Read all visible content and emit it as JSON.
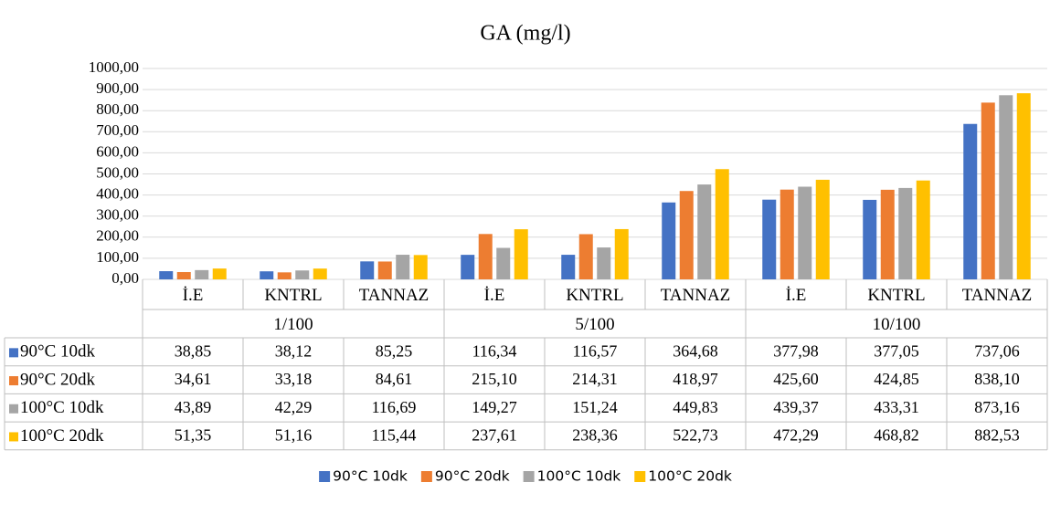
{
  "chart_data": {
    "type": "bar",
    "title": "GA (mg/l)",
    "categories": [
      "İ.E",
      "KNTRL",
      "TANNAZ",
      "İ.E",
      "KNTRL",
      "TANNAZ",
      "İ.E",
      "KNTRL",
      "TANNAZ"
    ],
    "category_groups": [
      "1/100",
      "5/100",
      "10/100"
    ],
    "series": [
      {
        "name": "90°C 10dk",
        "color": "#4472c4",
        "values": [
          38.85,
          38.12,
          85.25,
          116.34,
          116.57,
          364.68,
          377.98,
          377.05,
          737.06
        ],
        "value_labels": [
          "38,85",
          "38,12",
          "85,25",
          "116,34",
          "116,57",
          "364,68",
          "377,98",
          "377,05",
          "737,06"
        ]
      },
      {
        "name": "90°C 20dk",
        "color": "#ed7d31",
        "values": [
          34.61,
          33.18,
          84.61,
          215.1,
          214.31,
          418.97,
          425.6,
          424.85,
          838.1
        ],
        "value_labels": [
          "34,61",
          "33,18",
          "84,61",
          "215,10",
          "214,31",
          "418,97",
          "425,60",
          "424,85",
          "838,10"
        ]
      },
      {
        "name": "100°C 10dk",
        "color": "#a5a5a5",
        "values": [
          43.89,
          42.29,
          116.69,
          149.27,
          151.24,
          449.83,
          439.37,
          433.31,
          873.16
        ],
        "value_labels": [
          "43,89",
          "42,29",
          "116,69",
          "149,27",
          "151,24",
          "449,83",
          "439,37",
          "433,31",
          "873,16"
        ]
      },
      {
        "name": "100°C 20dk",
        "color": "#ffc000",
        "values": [
          51.35,
          51.16,
          115.44,
          237.61,
          238.36,
          522.73,
          472.29,
          468.82,
          882.53
        ],
        "value_labels": [
          "51,35",
          "51,16",
          "115,44",
          "237,61",
          "238,36",
          "522,73",
          "472,29",
          "468,82",
          "882,53"
        ]
      }
    ],
    "ylim": [
      0,
      1000
    ],
    "yticks": [
      {
        "value": 0,
        "label": "0,00"
      },
      {
        "value": 100,
        "label": "100,00"
      },
      {
        "value": 200,
        "label": "200,00"
      },
      {
        "value": 300,
        "label": "300,00"
      },
      {
        "value": 400,
        "label": "400,00"
      },
      {
        "value": 500,
        "label": "500,00"
      },
      {
        "value": 600,
        "label": "600,00"
      },
      {
        "value": 700,
        "label": "700,00"
      },
      {
        "value": 800,
        "label": "800,00"
      },
      {
        "value": 900,
        "label": "900,00"
      },
      {
        "value": 1000,
        "label": "1000,00"
      }
    ],
    "grid": true,
    "legend": "bottom"
  }
}
